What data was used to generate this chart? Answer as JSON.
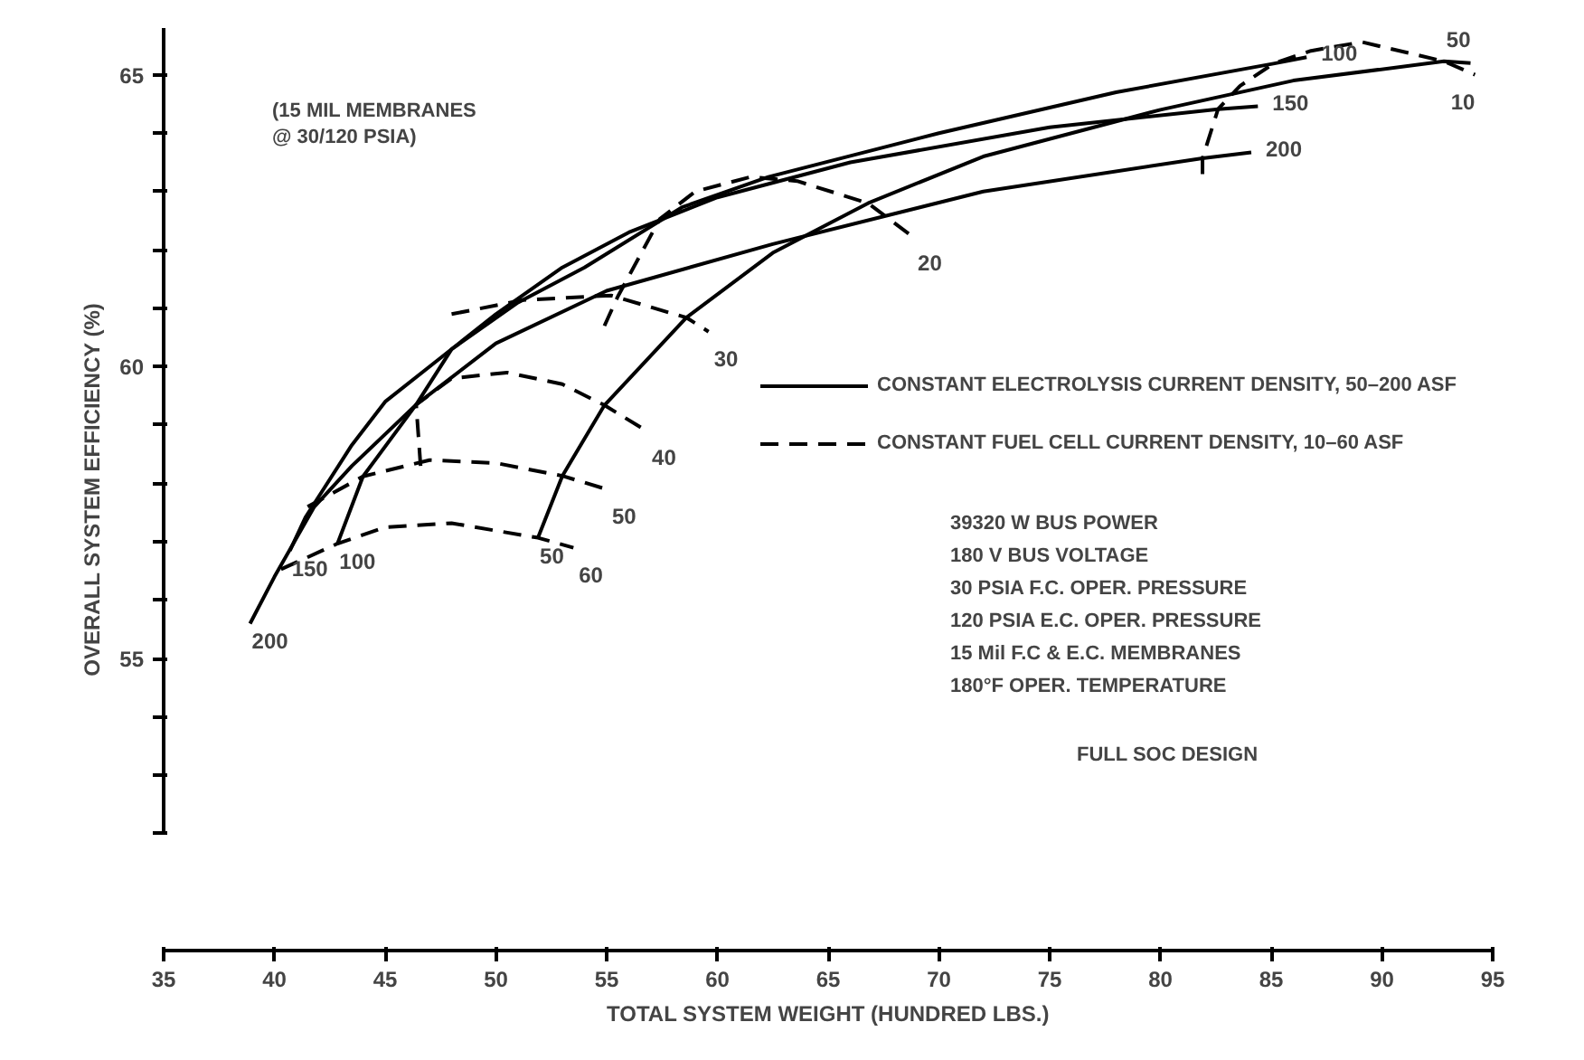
{
  "chart_data": {
    "type": "line",
    "xlabel": "TOTAL SYSTEM WEIGHT (HUNDRED LBS.)",
    "ylabel": "OVERALL SYSTEM EFFICIENCY (%)",
    "xlim": [
      35,
      95
    ],
    "xticks": [
      35,
      40,
      45,
      50,
      55,
      60,
      65,
      70,
      75,
      80,
      85,
      90,
      95
    ],
    "ylim": [
      50,
      65.8
    ],
    "yticks": [
      {
        "value": 52,
        "label": null
      },
      {
        "value": 53,
        "label": null
      },
      {
        "value": 54,
        "label": null
      },
      55,
      {
        "value": 56,
        "label": null
      },
      {
        "value": 57,
        "label": null
      },
      {
        "value": 58,
        "label": null
      },
      {
        "value": 59,
        "label": null
      },
      60,
      {
        "value": 61,
        "label": null
      },
      {
        "value": 62,
        "label": null
      },
      {
        "value": 63,
        "label": null
      },
      {
        "value": 64,
        "label": null
      },
      65
    ],
    "grid": false,
    "legend": "right",
    "series": [
      {
        "name": "50",
        "color": "#000000",
        "line_style": "solid",
        "x": [
          51.9,
          53.0,
          54.9,
          58.6,
          62.5,
          66.8,
          72,
          80,
          86,
          92.8,
          94.0
        ],
        "values": [
          57.07,
          58.13,
          59.34,
          60.84,
          61.95,
          62.8,
          63.6,
          64.4,
          64.9,
          65.23,
          65.2
        ]
      },
      {
        "name": "100",
        "color": "#000000",
        "line_style": "solid",
        "x": [
          42.85,
          44.0,
          46.4,
          48,
          51,
          54,
          58.4,
          62.3,
          70,
          78,
          85.1,
          86.6
        ],
        "values": [
          56.97,
          58.12,
          59.35,
          60.3,
          61.1,
          61.7,
          62.73,
          63.25,
          64.0,
          64.7,
          65.19,
          65.3
        ]
      },
      {
        "name": "150",
        "color": "#000000",
        "line_style": "solid",
        "x": [
          40.7,
          41.4,
          43.5,
          45,
          47.5,
          50,
          53,
          56,
          60,
          66,
          75,
          82.6,
          84.4
        ],
        "values": [
          56.85,
          57.42,
          58.66,
          59.4,
          60.15,
          60.9,
          61.7,
          62.3,
          62.9,
          63.5,
          64.1,
          64.41,
          64.46
        ]
      },
      {
        "name": "200",
        "color": "#000000",
        "line_style": "solid",
        "x": [
          38.9,
          40.0,
          41.8,
          43.5,
          46.4,
          50,
          55,
          62.5,
          72,
          81.9,
          84.1
        ],
        "values": [
          55.6,
          56.4,
          57.6,
          58.3,
          59.35,
          60.4,
          61.3,
          62.1,
          63.0,
          63.57,
          63.67
        ]
      },
      {
        "name": "60",
        "color": "#000000",
        "line_style": "dashed",
        "x": [
          40.3,
          42.85,
          45,
          48,
          51.9,
          53.5
        ],
        "values": [
          56.53,
          56.97,
          57.25,
          57.32,
          57.07,
          56.9
        ]
      },
      {
        "name": "50",
        "color": "#000000",
        "line_style": "dashed",
        "x": [
          41.5,
          44.0,
          47,
          50,
          53.0,
          55
        ],
        "values": [
          57.6,
          58.12,
          58.4,
          58.35,
          58.13,
          57.9
        ]
      },
      {
        "name": "40",
        "color": "#000000",
        "line_style": "dashed",
        "x": [
          46.6,
          46.4,
          48,
          50.5,
          53,
          54.9,
          56.8
        ],
        "values": [
          58.3,
          59.35,
          59.8,
          59.9,
          59.7,
          59.34,
          58.9
        ]
      },
      {
        "name": "30",
        "color": "#000000",
        "line_style": "dashed",
        "x": [
          48,
          51.2,
          55.2,
          58.6,
          59.6
        ],
        "values": [
          60.9,
          61.14,
          61.22,
          60.84,
          60.6
        ]
      },
      {
        "name": "20",
        "color": "#000000",
        "line_style": "dashed",
        "x": [
          54.9,
          55.5,
          57.4,
          59,
          61.5,
          63.6,
          66.8,
          68.8
        ],
        "values": [
          60.7,
          61.2,
          62.53,
          63.0,
          63.25,
          63.18,
          62.8,
          62.23
        ]
      },
      {
        "name": "10",
        "color": "#000000",
        "line_style": "dashed",
        "x": [
          81.9,
          81.9,
          82.6,
          83.6,
          85.1,
          86.8,
          89.1,
          92.8,
          94.2
        ],
        "values": [
          63.3,
          63.57,
          64.41,
          64.81,
          65.19,
          65.41,
          65.56,
          65.23,
          65.0
        ]
      }
    ],
    "annotations": [
      "(15 MIL MEMBRANES\n @ 30/120 PSIA)",
      "CONSTANT ELECTROLYSIS CURRENT DENSITY, 50–200 ASF",
      "CONSTANT FUEL CELL CURRENT DENSITY, 10–60 ASF",
      "39320 W   BUS POWER",
      "180 V   BUS VOLTAGE",
      "30 PSIA   F.C. OPER. PRESSURE",
      "120 PSIA   E.C. OPER. PRESSURE",
      "15 Mil   F.C & E.C. MEMBRANES",
      "180°F   OPER. TEMPERATURE",
      "FULL SOC DESIGN"
    ]
  }
}
